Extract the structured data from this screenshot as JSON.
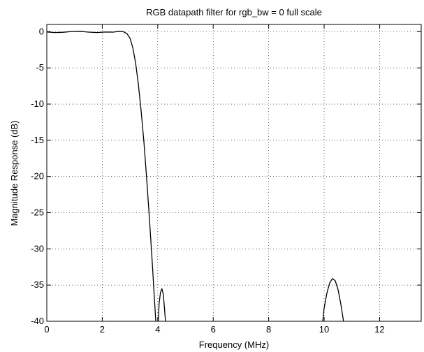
{
  "chart_data": {
    "type": "line",
    "title": "RGB datapath filter for rgb_bw = 0 full scale",
    "xlabel": "Frequency (MHz)",
    "ylabel": "Magnitude Response (dB)",
    "xlim": [
      0,
      13.5
    ],
    "ylim": [
      -40,
      1
    ],
    "xticks": [
      0,
      2,
      4,
      6,
      8,
      10,
      12
    ],
    "yticks": [
      0,
      -5,
      -10,
      -15,
      -20,
      -25,
      -30,
      -35,
      -40
    ],
    "grid": true,
    "line_color": "#000000",
    "series": [
      {
        "segments": [
          [
            [
              0,
              -0.05
            ],
            [
              0.3,
              -0.12
            ],
            [
              0.6,
              -0.08
            ],
            [
              0.9,
              0.03
            ],
            [
              1.2,
              0.05
            ],
            [
              1.5,
              -0.06
            ],
            [
              1.8,
              -0.12
            ],
            [
              2.1,
              -0.05
            ],
            [
              2.4,
              -0.06
            ],
            [
              2.6,
              0.05
            ],
            [
              2.75,
              0.02
            ],
            [
              2.9,
              -0.3
            ],
            [
              3.0,
              -0.9
            ],
            [
              3.1,
              -2.2
            ],
            [
              3.2,
              -4.3
            ],
            [
              3.3,
              -7.2
            ],
            [
              3.4,
              -10.9
            ],
            [
              3.5,
              -15.2
            ],
            [
              3.6,
              -20.2
            ],
            [
              3.7,
              -25.8
            ],
            [
              3.8,
              -31.8
            ],
            [
              3.87,
              -36.3
            ],
            [
              3.93,
              -40
            ]
          ],
          [
            [
              4.02,
              -40
            ],
            [
              4.05,
              -37.5
            ],
            [
              4.1,
              -36
            ],
            [
              4.15,
              -35.5
            ],
            [
              4.2,
              -36.3
            ],
            [
              4.25,
              -38.5
            ],
            [
              4.28,
              -40
            ]
          ],
          [
            [
              9.95,
              -40
            ],
            [
              10.0,
              -38.2
            ],
            [
              10.1,
              -36.1
            ],
            [
              10.2,
              -34.7
            ],
            [
              10.3,
              -34.1
            ],
            [
              10.4,
              -34.4
            ],
            [
              10.5,
              -35.6
            ],
            [
              10.6,
              -37.6
            ],
            [
              10.7,
              -40
            ]
          ]
        ]
      }
    ]
  }
}
